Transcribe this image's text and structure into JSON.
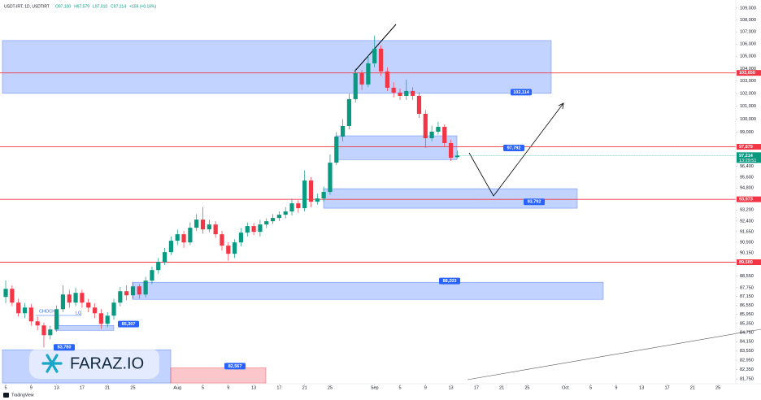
{
  "chart_data": {
    "type": "candlestick",
    "header": {
      "symbol": "USDT-IRT, 1D, USDTIRT",
      "ohlc": [
        "O97,100",
        "H97,579",
        "L97,010",
        "C97,214",
        "+159 (+0.16%)"
      ]
    },
    "log_scale": true,
    "grid": false,
    "up_color": "#089981",
    "down_color": "#f23645",
    "ylim": [
      81400,
      109400
    ],
    "xlim": [
      -0.9,
      114.8
    ],
    "yticks": [
      {
        "value": 109000,
        "label": "109,000"
      },
      {
        "value": 108000,
        "label": "108,000"
      },
      {
        "value": 107000,
        "label": "107,000"
      },
      {
        "value": 106000,
        "label": "106,000"
      },
      {
        "value": 105000,
        "label": "105,000"
      },
      {
        "value": 104000,
        "label": "104,000"
      },
      {
        "value": 103000,
        "label": "103,000"
      },
      {
        "value": 102000,
        "label": "102,000"
      },
      {
        "value": 101000,
        "label": "101,000"
      },
      {
        "value": 100000,
        "label": "100,000"
      },
      {
        "value": 99000,
        "label": "99,000"
      },
      {
        "value": 96400,
        "label": "96,400"
      },
      {
        "value": 95600,
        "label": "95,600"
      },
      {
        "value": 94800,
        "label": "94,800"
      },
      {
        "value": 93200,
        "label": "93,200"
      },
      {
        "value": 92400,
        "label": "92,400"
      },
      {
        "value": 91650,
        "label": "91,650"
      },
      {
        "value": 90900,
        "label": "90,900"
      },
      {
        "value": 90150,
        "label": "90,150"
      },
      {
        "value": 88550,
        "label": "88,550"
      },
      {
        "value": 87750,
        "label": "87,750"
      },
      {
        "value": 87150,
        "label": "87,150"
      },
      {
        "value": 86550,
        "label": "86,550"
      },
      {
        "value": 85950,
        "label": "85,950"
      },
      {
        "value": 85350,
        "label": "85,350"
      },
      {
        "value": 84750,
        "label": "84,750"
      },
      {
        "value": 84150,
        "label": "84,150"
      },
      {
        "value": 83550,
        "label": "83,550"
      },
      {
        "value": 82950,
        "label": "82,950"
      },
      {
        "value": 82350,
        "label": "82,350"
      },
      {
        "value": 81750,
        "label": "81,750"
      }
    ],
    "xticks": [
      {
        "value": 0,
        "label": "5"
      },
      {
        "value": 4,
        "label": "9"
      },
      {
        "value": 8,
        "label": "13"
      },
      {
        "value": 12,
        "label": "17"
      },
      {
        "value": 16,
        "label": "21"
      },
      {
        "value": 20,
        "label": "25"
      },
      {
        "value": 27,
        "label": "Aug"
      },
      {
        "value": 31,
        "label": "5"
      },
      {
        "value": 35,
        "label": "9"
      },
      {
        "value": 39,
        "label": "13"
      },
      {
        "value": 43,
        "label": "17"
      },
      {
        "value": 47,
        "label": "21"
      },
      {
        "value": 51,
        "label": "25"
      },
      {
        "value": 58,
        "label": "Sep"
      },
      {
        "value": 62,
        "label": "5"
      },
      {
        "value": 66,
        "label": "9"
      },
      {
        "value": 70,
        "label": "13"
      },
      {
        "value": 74,
        "label": "17"
      },
      {
        "value": 78,
        "label": "21"
      },
      {
        "value": 82,
        "label": "25"
      },
      {
        "value": 88,
        "label": "Oct"
      },
      {
        "value": 92,
        "label": "5"
      },
      {
        "value": 96,
        "label": "9"
      },
      {
        "value": 100,
        "label": "13"
      },
      {
        "value": 104,
        "label": "17"
      },
      {
        "value": 108,
        "label": "21"
      },
      {
        "value": 112,
        "label": "25"
      }
    ],
    "candles": {
      "open": [
        87122,
        87673,
        86738,
        86028,
        86408,
        85487,
        85218,
        84575,
        84950,
        86300,
        87287,
        86738,
        87397,
        86738,
        86408,
        86028,
        85325,
        85865,
        86738,
        87507,
        87232,
        87839,
        87287,
        88228,
        88955,
        89518,
        90199,
        91000,
        91460,
        90884,
        91923,
        92505,
        91807,
        92155,
        91460,
        90656,
        90085,
        90884,
        91576,
        92039,
        91634,
        92155,
        92388,
        92622,
        92856,
        93090,
        93680,
        93326,
        95350,
        93798,
        94036,
        94512,
        96683,
        98655,
        99468,
        101562,
        103634,
        102722,
        104421,
        105614,
        103765,
        102463,
        102077,
        101818,
        102205,
        101818,
        100414,
        98531,
        99030,
        99405,
        98158,
        97100
      ],
      "high": [
        88250,
        87900,
        87000,
        86700,
        86650,
        85800,
        85400,
        85200,
        86550,
        87900,
        87600,
        87750,
        87600,
        87000,
        86700,
        86300,
        86100,
        87000,
        87800,
        87900,
        88100,
        88000,
        88500,
        89200,
        89800,
        90500,
        91300,
        91800,
        91700,
        92300,
        92900,
        93400,
        92500,
        92400,
        91700,
        90900,
        91100,
        91900,
        92300,
        92250,
        92500,
        92600,
        92900,
        93100,
        93400,
        94000,
        93900,
        96100,
        95600,
        94400,
        94900,
        97300,
        99000,
        100000,
        102000,
        104000,
        103900,
        105100,
        106700,
        105900,
        104100,
        102900,
        102400,
        103100,
        102500,
        102100,
        100700,
        99500,
        99800,
        99600,
        98400,
        97579
      ],
      "low": [
        86700,
        86500,
        85800,
        85700,
        85200,
        84900,
        83780,
        84300,
        84800,
        86100,
        86400,
        86500,
        86400,
        86100,
        85700,
        85000,
        85100,
        85600,
        86500,
        86900,
        87000,
        87000,
        87100,
        88000,
        88700,
        89300,
        90000,
        90700,
        90500,
        90700,
        91700,
        91500,
        91600,
        91200,
        90300,
        89600,
        89800,
        90600,
        91300,
        91400,
        91300,
        91900,
        92200,
        92400,
        92600,
        92800,
        93000,
        93100,
        93400,
        93600,
        93800,
        94300,
        96500,
        98300,
        99200,
        101300,
        102300,
        102500,
        104100,
        103400,
        102200,
        101700,
        101500,
        101500,
        101500,
        100100,
        97800,
        98300,
        98800,
        97900,
        96800,
        97010
      ],
      "close": [
        87673,
        86738,
        86028,
        86408,
        85487,
        85218,
        84575,
        84950,
        86300,
        87287,
        86738,
        87397,
        86738,
        86408,
        86028,
        85325,
        85865,
        86738,
        87507,
        87232,
        87839,
        87287,
        88228,
        88955,
        89518,
        90199,
        91000,
        91460,
        90884,
        91923,
        92505,
        91807,
        92155,
        91460,
        90656,
        90085,
        90884,
        91576,
        92039,
        91634,
        92155,
        92388,
        92622,
        92856,
        93090,
        93680,
        93326,
        95350,
        93798,
        94036,
        94512,
        96683,
        98655,
        99468,
        101562,
        103634,
        102722,
        104421,
        105614,
        103765,
        102463,
        102077,
        101818,
        102205,
        101818,
        100414,
        98531,
        99030,
        99405,
        98158,
        97055,
        97214
      ]
    },
    "zones": [
      {
        "top": 106283,
        "bottom": 102018,
        "value": 102114,
        "label": "102,114",
        "color": "#2962ff"
      },
      {
        "top": 98716,
        "bottom": 96909,
        "value": 97792,
        "label": "97,792",
        "color": "#2962ff"
      },
      {
        "top": 94750,
        "bottom": 93326,
        "value": 93792,
        "label": "93,792",
        "color": "#2962ff"
      },
      {
        "top": 88117,
        "bottom": 86957,
        "value": 88203,
        "label": "88,203",
        "color": "#2962ff"
      },
      {
        "top": 85218,
        "bottom": 84896,
        "value": 85307,
        "label": "85,307",
        "color": "#2962ff"
      },
      {
        "top": 83626,
        "bottom": 81500,
        "value": 83780,
        "label": "83,780",
        "color": "#2962ff"
      },
      {
        "top": 82463,
        "bottom": 81500,
        "value": 82567,
        "label": "82,567",
        "color": "#f23645"
      }
    ],
    "levels": [
      {
        "value": 103650,
        "label": "103,650"
      },
      {
        "value": 97879,
        "label": "97,879"
      },
      {
        "value": 93973,
        "label": "93,973"
      },
      {
        "value": 89500,
        "label": "89,500"
      }
    ],
    "level_color": "#f23645",
    "last_price": {
      "value": 97214,
      "label": "97,214",
      "countdown": "13:29:51"
    },
    "annotations": [
      "CHOCH",
      "LQ"
    ],
    "watermark": "FARAZ.IO",
    "brand": "TradingView"
  }
}
